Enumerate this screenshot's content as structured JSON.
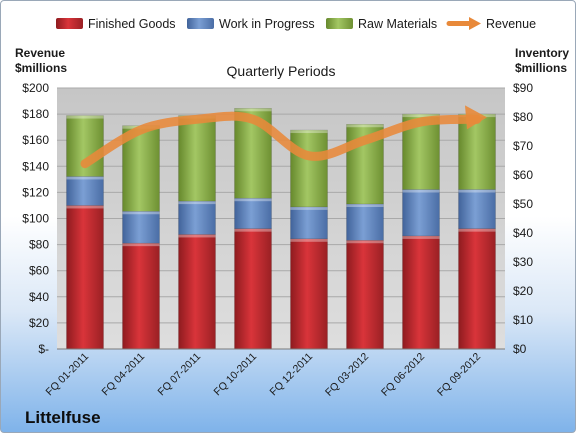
{
  "chart_data": {
    "type": "bar",
    "subtype": "stacked-bar-with-line",
    "title": "Quarterly Periods",
    "company": "Littelfuse",
    "categories": [
      "FQ 01-2011",
      "FQ 04-2011",
      "FQ 07-2011",
      "FQ 10-2011",
      "FQ 12-2011",
      "FQ 03-2012",
      "FQ 06-2012",
      "FQ 09-2012"
    ],
    "series": [
      {
        "name": "Finished Goods",
        "axis": "right",
        "color": "#c0282e",
        "values": [
          49.5,
          36.5,
          39.5,
          41.5,
          38,
          37.5,
          39,
          41.5
        ]
      },
      {
        "name": "Work in Progress",
        "axis": "right",
        "color": "#5f86c2",
        "values": [
          10,
          11,
          11.5,
          10.5,
          11,
          12.5,
          16,
          13.5
        ]
      },
      {
        "name": "Raw Materials",
        "axis": "right",
        "color": "#8fb54a",
        "values": [
          21,
          29.5,
          29.5,
          31,
          26.5,
          27.5,
          26,
          26
        ]
      }
    ],
    "line": {
      "name": "Revenue",
      "axis": "left",
      "color": "#e8893a",
      "values": [
        142,
        168,
        176,
        176,
        148,
        160,
        174,
        176
      ]
    },
    "left_axis": {
      "label_line1": "Revenue",
      "label_line2": "$millions",
      "range": [
        0,
        200
      ],
      "ticks": [
        "$-",
        "$20",
        "$40",
        "$60",
        "$80",
        "$100",
        "$120",
        "$140",
        "$160",
        "$180",
        "$200"
      ]
    },
    "right_axis": {
      "label_line1": "Inventory",
      "label_line2": "$millions",
      "range": [
        0,
        90
      ],
      "ticks": [
        "$0",
        "$10",
        "$20",
        "$30",
        "$40",
        "$50",
        "$60",
        "$70",
        "$80",
        "$90"
      ]
    },
    "grid": true,
    "legend_position": "top",
    "plot_background": "#d0d0d0"
  }
}
